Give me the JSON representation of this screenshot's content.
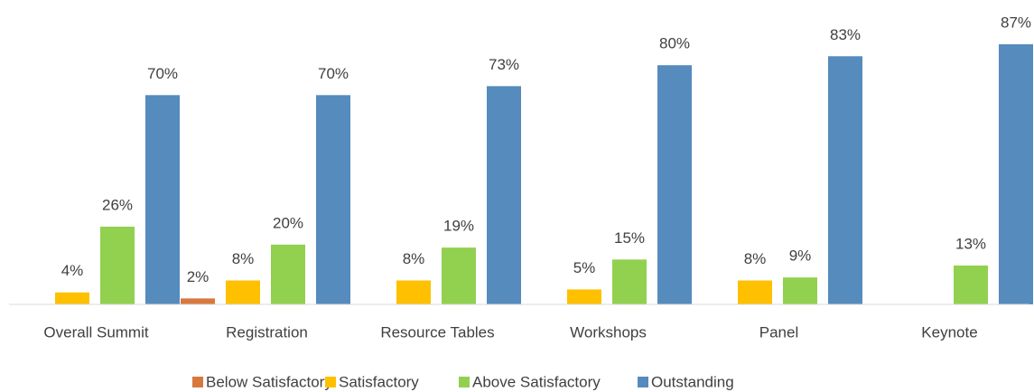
{
  "chart_data": {
    "type": "bar",
    "categories": [
      "Overall Summit",
      "Registration",
      "Resource Tables",
      "Workshops",
      "Panel",
      "Keynote"
    ],
    "series": [
      {
        "name": "Below Satisfactory",
        "color": "#d8783e",
        "values": [
          null,
          2,
          null,
          null,
          null,
          null
        ],
        "value_labels": [
          null,
          "2%",
          null,
          null,
          null,
          null
        ]
      },
      {
        "name": "Satisfactory",
        "color": "#ffc000",
        "values": [
          4,
          8,
          8,
          5,
          8,
          null
        ],
        "value_labels": [
          "4%",
          "8%",
          "8%",
          "5%",
          "8%",
          null
        ]
      },
      {
        "name": "Above Satisfactory",
        "color": "#92d050",
        "values": [
          26,
          20,
          19,
          15,
          9,
          13
        ],
        "value_labels": [
          "26%",
          "20%",
          "19%",
          "15%",
          "9%",
          "13%"
        ]
      },
      {
        "name": "Outstanding",
        "color": "#558bbd",
        "values": [
          70,
          70,
          73,
          80,
          83,
          87
        ],
        "value_labels": [
          "70%",
          "70%",
          "73%",
          "80%",
          "83%",
          "87%"
        ]
      }
    ],
    "ylim": [
      0,
      100
    ],
    "legend": "bottom"
  }
}
